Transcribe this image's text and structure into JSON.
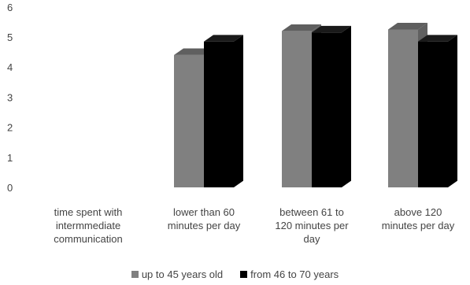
{
  "chart_data": {
    "type": "bar",
    "style": "3d-clustered-column",
    "categories": [
      [
        "time spent with",
        "intermmediate",
        "communication"
      ],
      [
        "lower than 60",
        "minutes per day"
      ],
      [
        "between 61 to",
        "120 minutes per",
        "day"
      ],
      [
        "above 120",
        "minutes per day"
      ]
    ],
    "series": [
      {
        "name": "up to 45 years old",
        "color": "#808080",
        "values": [
          null,
          4.4,
          5.2,
          5.25
        ]
      },
      {
        "name": "from 46 to 70 years",
        "color": "#000000",
        "values": [
          null,
          4.85,
          5.15,
          4.85
        ]
      }
    ],
    "yticks": [
      "0",
      "1",
      "2",
      "3",
      "4",
      "5",
      "6"
    ],
    "ylim": [
      0,
      6
    ],
    "grid": false,
    "legend_position": "bottom"
  }
}
